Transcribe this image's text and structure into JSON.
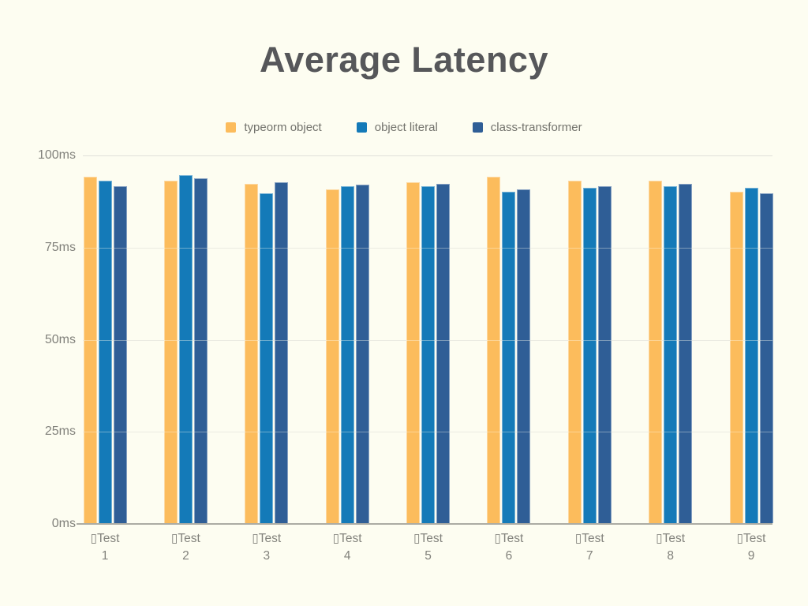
{
  "title": "Average Latency",
  "chart_data": {
    "type": "bar",
    "title": "Average Latency",
    "categories": [
      "▯Test\n1",
      "▯Test\n2",
      "▯Test\n3",
      "▯Test\n4",
      "▯Test\n5",
      "▯Test\n6",
      "▯Test\n7",
      "▯Test\n8",
      "▯Test\n9"
    ],
    "series": [
      {
        "name": "typeorm object",
        "color": "#FCBC5C",
        "values": [
          94,
          93,
          92,
          90.5,
          92.5,
          94,
          93,
          93,
          90
        ]
      },
      {
        "name": "object literal",
        "color": "#147AB8",
        "values": [
          93,
          94.5,
          89.5,
          91.5,
          91.5,
          90,
          91,
          91.5,
          91
        ]
      },
      {
        "name": "class-transformer",
        "color": "#2F5E96",
        "values": [
          91.5,
          93.5,
          92.5,
          91.8,
          92,
          90.5,
          91.5,
          92,
          89.5
        ]
      }
    ],
    "xlabel": "",
    "ylabel": "",
    "ylim": [
      0,
      100
    ],
    "y_ticks": [
      "100ms",
      "75ms",
      "50ms",
      "25ms",
      "0ms"
    ],
    "grid": true,
    "legend_position": "top"
  },
  "colors": {
    "background": "#FDFDF1",
    "title_text": "#56575A",
    "legend_text": "#72726C",
    "tick_text": "#82827C",
    "gridline": "#E1E1DA",
    "axis_line": "#ACACA4"
  }
}
